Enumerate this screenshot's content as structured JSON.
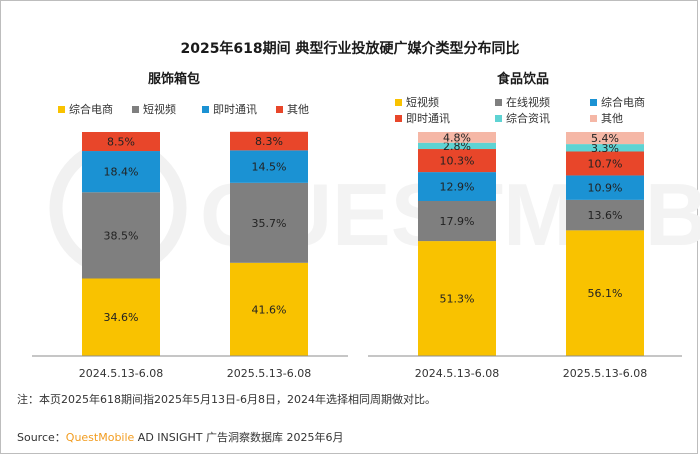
{
  "title": "2025年618期间 典型行业投放硬广媒介类型分布同比",
  "colors": {
    "综合电商": "#F9C200",
    "短视频": "#7F7F7F",
    "即时通讯": "#1B92D3",
    "其他": "#E8462A",
    "在线视频": "#7F7F7F",
    "综合资讯": "#5ED3D3",
    "其他_food": "#F5B7A6"
  },
  "chart_data": [
    {
      "type": "bar",
      "stacked": true,
      "title": "服饰箱包",
      "categories": [
        "2024.5.13-6.08",
        "2025.5.13-6.08"
      ],
      "series": [
        {
          "name": "综合电商",
          "values": [
            34.6,
            41.6
          ]
        },
        {
          "name": "短视频",
          "values": [
            38.5,
            35.7
          ]
        },
        {
          "name": "即时通讯",
          "values": [
            18.4,
            14.5
          ]
        },
        {
          "name": "其他",
          "values": [
            8.5,
            8.3
          ]
        }
      ],
      "legend_order": [
        "综合电商",
        "短视频",
        "即时通讯",
        "其他"
      ],
      "value_suffix": "%",
      "ylim": [
        0,
        100
      ]
    },
    {
      "type": "bar",
      "stacked": true,
      "title": "食品饮品",
      "categories": [
        "2024.5.13-6.08",
        "2025.5.13-6.08"
      ],
      "series": [
        {
          "name": "短视频",
          "values": [
            51.3,
            56.1
          ]
        },
        {
          "name": "在线视频",
          "values": [
            17.9,
            13.6
          ]
        },
        {
          "name": "综合电商",
          "values": [
            12.9,
            10.9
          ]
        },
        {
          "name": "即时通讯",
          "values": [
            10.3,
            10.7
          ]
        },
        {
          "name": "综合资讯",
          "values": [
            2.8,
            3.3
          ]
        },
        {
          "name": "其他",
          "values": [
            4.8,
            5.4
          ]
        }
      ],
      "legend_order": [
        "短视频",
        "在线视频",
        "综合电商",
        "即时通讯",
        "综合资讯",
        "其他"
      ],
      "value_suffix": "%",
      "ylim": [
        0,
        100
      ]
    }
  ],
  "note": "注：本页2025年618期间指2025年5月13日-6月8日，2024年选择相同周期做对比。",
  "source": {
    "prefix": "Source：",
    "brand": "QuestMobile",
    "rest": " AD INSIGHT 广告洞察数据库 2025年6月"
  }
}
